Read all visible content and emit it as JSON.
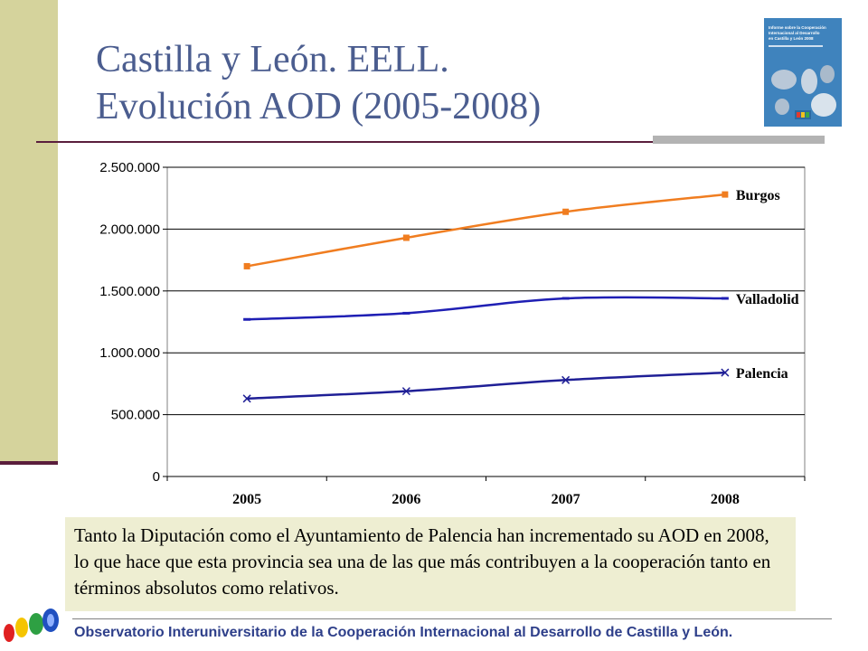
{
  "slide": {
    "title_line1": "Castilla y León. EELL.",
    "title_line2": "Evolución AOD (2005-2008)",
    "caption": "Tanto la Diputación como el Ayuntamiento de Palencia han incrementado su AOD en 2008, lo que hace que esta provincia sea una de las que más contribuyen a la cooperación tanto en términos absolutos como relativos.",
    "footer": "Observatorio Interuniversitario de la Cooperación Internacional al Desarrollo de Castilla y León."
  },
  "cover": {
    "title_lines": [
      "Informe sobre la Cooperación",
      "Internacional al Desarrollo",
      "en Castilla y León 2008"
    ]
  },
  "colors": {
    "accent_bar": "#d5d39c",
    "title": "#4b5d8f",
    "burgos": "#f07d20",
    "valladolid": "#1f1fb4",
    "palencia": "#1f1f96",
    "footer": "#2e3f8a"
  },
  "chart_data": {
    "type": "line",
    "categories": [
      "2005",
      "2006",
      "2007",
      "2008"
    ],
    "series": [
      {
        "name": "Burgos",
        "values": [
          1700000,
          1930000,
          2140000,
          2280000
        ],
        "marker": "square"
      },
      {
        "name": "Valladolid",
        "values": [
          1270000,
          1320000,
          1440000,
          1440000
        ],
        "marker": "dash"
      },
      {
        "name": "Palencia",
        "values": [
          630000,
          690000,
          780000,
          840000
        ],
        "marker": "x"
      }
    ],
    "yticks": [
      "0",
      "500.000",
      "1.000.000",
      "1.500.000",
      "2.000.000",
      "2.500.000"
    ],
    "ylim": [
      0,
      2500000
    ],
    "grid": true,
    "legend": "inline-right"
  }
}
